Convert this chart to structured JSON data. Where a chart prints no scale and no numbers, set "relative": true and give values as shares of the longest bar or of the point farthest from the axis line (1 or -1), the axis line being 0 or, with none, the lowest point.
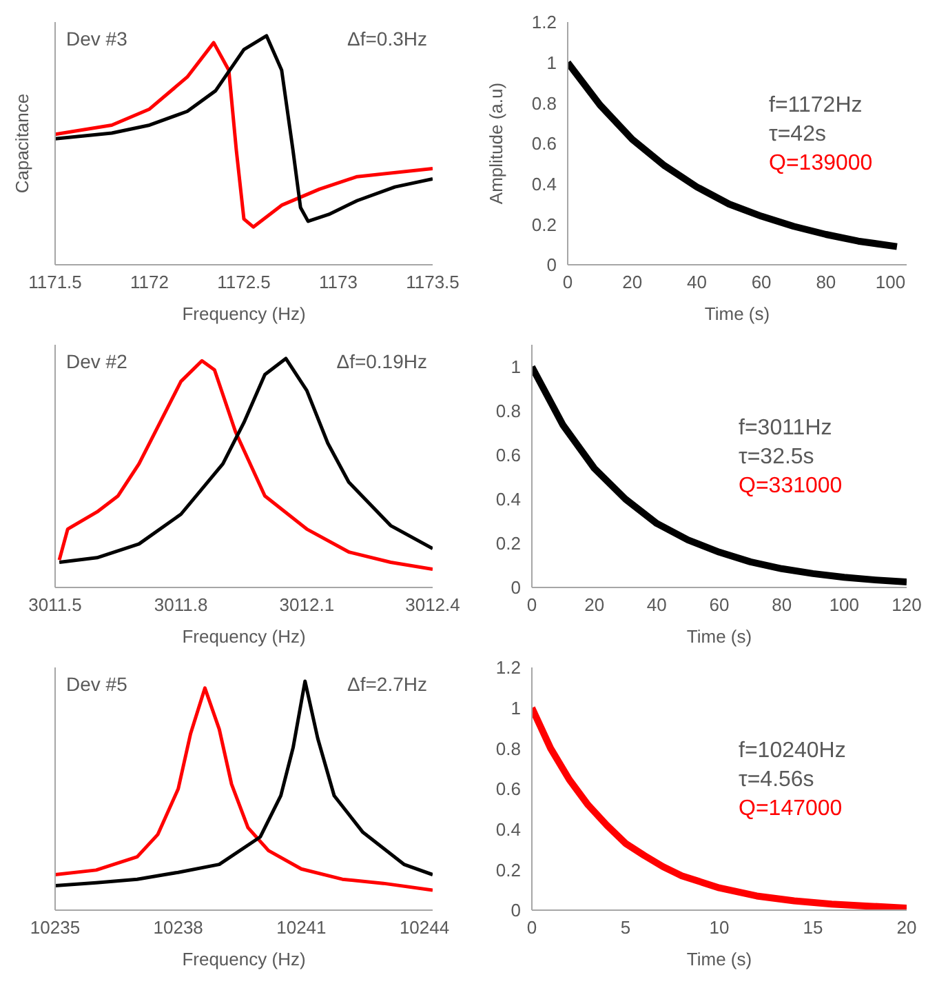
{
  "chart_data": [
    {
      "type": "line",
      "relative": true,
      "xlabel": "Frequency (Hz)",
      "ylabel": "Capacitance",
      "tick_labels": "x",
      "xlim": [
        1171.5,
        1173.5
      ],
      "xticks": [
        1171.5,
        1172,
        1172.5,
        1173,
        1173.5
      ],
      "grid": false,
      "legend": false,
      "marker": "none",
      "annotations": [
        "Dev #3",
        "Δf=0.3Hz"
      ],
      "series": [
        {
          "color": "#ff0000",
          "x": [
            1171.5,
            1171.8,
            1172.0,
            1172.2,
            1172.34,
            1172.42,
            1172.46,
            1172.5,
            1172.55,
            1172.7,
            1172.9,
            1173.1,
            1173.5
          ],
          "values": [
            0.57,
            0.61,
            0.68,
            0.82,
            0.97,
            0.85,
            0.5,
            0.2,
            0.165,
            0.26,
            0.33,
            0.385,
            0.42
          ]
        },
        {
          "color": "#000000",
          "x": [
            1171.5,
            1171.8,
            1172.0,
            1172.2,
            1172.35,
            1172.5,
            1172.62,
            1172.7,
            1172.76,
            1172.8,
            1172.84,
            1172.95,
            1173.1,
            1173.3,
            1173.5
          ],
          "values": [
            0.55,
            0.575,
            0.61,
            0.67,
            0.76,
            0.94,
            1,
            0.85,
            0.5,
            0.25,
            0.19,
            0.22,
            0.28,
            0.34,
            0.375
          ]
        }
      ]
    },
    {
      "type": "line",
      "xlabel": "Time (s)",
      "ylabel": "Amplitude (a.u)",
      "xlim": [
        0,
        105
      ],
      "xticks": [
        0,
        20,
        40,
        60,
        80,
        100
      ],
      "ylim": [
        0,
        1.2
      ],
      "yticks": [
        0,
        0.2,
        0.4,
        0.6,
        0.8,
        1,
        1.2
      ],
      "grid": false,
      "legend": false,
      "marker": "none",
      "annotations": [
        "f=1172Hz",
        "τ=42s",
        "Q=139000"
      ],
      "series": [
        {
          "color": "#000000",
          "x": [
            0,
            10,
            20,
            30,
            40,
            50,
            60,
            70,
            80,
            90,
            102
          ],
          "values": [
            1.0,
            0.79,
            0.62,
            0.49,
            0.385,
            0.3,
            0.24,
            0.19,
            0.15,
            0.117,
            0.09
          ]
        }
      ]
    },
    {
      "type": "line",
      "relative": true,
      "xlabel": "Frequency (Hz)",
      "tick_labels": "x",
      "xlim": [
        3011.5,
        3012.4
      ],
      "xticks": [
        3011.5,
        3011.8,
        3012.1,
        3012.4
      ],
      "grid": false,
      "legend": false,
      "marker": "none",
      "annotations": [
        "Dev #2",
        "Δf=0.19Hz"
      ],
      "series": [
        {
          "color": "#ff0000",
          "x": [
            3011.51,
            3011.53,
            3011.6,
            3011.65,
            3011.7,
            3011.75,
            3011.8,
            3011.85,
            3011.88,
            3011.93,
            3012.0,
            3012.1,
            3012.2,
            3012.3,
            3012.4
          ],
          "values": [
            0.12,
            0.255,
            0.33,
            0.4,
            0.54,
            0.72,
            0.9,
            0.99,
            0.95,
            0.68,
            0.4,
            0.255,
            0.155,
            0.11,
            0.08
          ]
        },
        {
          "color": "#000000",
          "x": [
            3011.51,
            3011.6,
            3011.7,
            3011.8,
            3011.9,
            3011.95,
            3012.0,
            3012.05,
            3012.1,
            3012.15,
            3012.2,
            3012.3,
            3012.4
          ],
          "values": [
            0.11,
            0.13,
            0.19,
            0.32,
            0.54,
            0.72,
            0.93,
            1.0,
            0.86,
            0.63,
            0.46,
            0.27,
            0.17
          ]
        }
      ]
    },
    {
      "type": "line",
      "xlabel": "Time (s)",
      "xlim": [
        0,
        120
      ],
      "xticks": [
        0,
        20,
        40,
        60,
        80,
        100,
        120
      ],
      "ylim": [
        0,
        1.1
      ],
      "yticks": [
        0,
        0.2,
        0.4,
        0.6,
        0.8,
        1
      ],
      "grid": false,
      "legend": false,
      "marker": "none",
      "annotations": [
        "f=3011Hz",
        "τ=32.5s",
        "Q=331000"
      ],
      "series": [
        {
          "color": "#000000",
          "x": [
            0,
            10,
            20,
            30,
            40,
            50,
            60,
            70,
            80,
            90,
            100,
            110,
            120
          ],
          "values": [
            1.0,
            0.735,
            0.54,
            0.4,
            0.29,
            0.215,
            0.16,
            0.116,
            0.085,
            0.063,
            0.046,
            0.034,
            0.025
          ]
        }
      ]
    },
    {
      "type": "line",
      "relative": true,
      "xlabel": "Frequency (Hz)",
      "tick_labels": "x",
      "xlim": [
        10235,
        10244.2
      ],
      "xticks": [
        10235,
        10238,
        10241,
        10244
      ],
      "grid": false,
      "legend": false,
      "marker": "none",
      "annotations": [
        "Dev #5",
        "Δf=2.7Hz"
      ],
      "series": [
        {
          "color": "#ff0000",
          "x": [
            10235,
            10236,
            10237,
            10237.5,
            10238,
            10238.3,
            10238.65,
            10239,
            10239.3,
            10239.7,
            10240.2,
            10241,
            10242,
            10243,
            10244.2
          ],
          "values": [
            0.155,
            0.175,
            0.233,
            0.33,
            0.53,
            0.77,
            0.97,
            0.79,
            0.55,
            0.36,
            0.26,
            0.18,
            0.135,
            0.117,
            0.087
          ]
        },
        {
          "color": "#000000",
          "x": [
            10235,
            10236,
            10237,
            10238,
            10239,
            10240,
            10240.5,
            10240.8,
            10241.09,
            10241.4,
            10241.8,
            10242.5,
            10243.5,
            10244.2
          ],
          "values": [
            0.107,
            0.12,
            0.135,
            0.165,
            0.2,
            0.32,
            0.5,
            0.71,
            1,
            0.75,
            0.5,
            0.34,
            0.2,
            0.155
          ]
        }
      ]
    },
    {
      "type": "line",
      "xlabel": "Time (s)",
      "xlim": [
        0,
        20
      ],
      "xticks": [
        0,
        5,
        10,
        15,
        20
      ],
      "ylim": [
        0,
        1.2
      ],
      "yticks": [
        0,
        0.2,
        0.4,
        0.6,
        0.8,
        1,
        1.2
      ],
      "grid": false,
      "legend": false,
      "marker": "none",
      "annotations": [
        "f=10240Hz",
        "τ=4.56s",
        "Q=147000"
      ],
      "series": [
        {
          "color": "#ff0000",
          "x": [
            0,
            1,
            2,
            3,
            4,
            5,
            6,
            7,
            8,
            10,
            12,
            14,
            16,
            18,
            20
          ],
          "values": [
            1.0,
            0.8,
            0.645,
            0.52,
            0.42,
            0.33,
            0.27,
            0.215,
            0.17,
            0.11,
            0.07,
            0.046,
            0.03,
            0.02,
            0.01
          ]
        }
      ]
    }
  ]
}
